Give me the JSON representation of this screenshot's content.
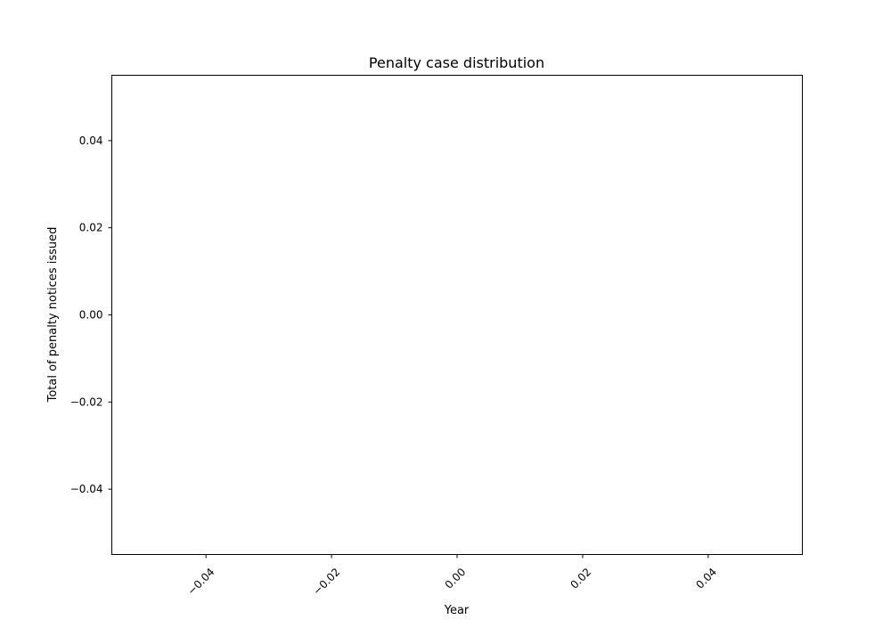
{
  "chart_data": {
    "type": "line",
    "title": "Penalty case distribution",
    "xlabel": "Year",
    "ylabel": "Total of penalty notices issued",
    "xlim": [
      -0.055,
      0.055
    ],
    "ylim": [
      -0.055,
      0.055
    ],
    "x_ticks": [
      -0.04,
      -0.02,
      0.0,
      0.02,
      0.04
    ],
    "x_tick_labels": [
      "−0.04",
      "−0.02",
      "0.00",
      "0.02",
      "0.04"
    ],
    "x_tick_rotation": 45,
    "y_ticks": [
      -0.04,
      -0.02,
      0.0,
      0.02,
      0.04
    ],
    "y_tick_labels": [
      "−0.04",
      "−0.02",
      "0.00",
      "0.02",
      "0.04"
    ],
    "grid": false,
    "series": []
  }
}
